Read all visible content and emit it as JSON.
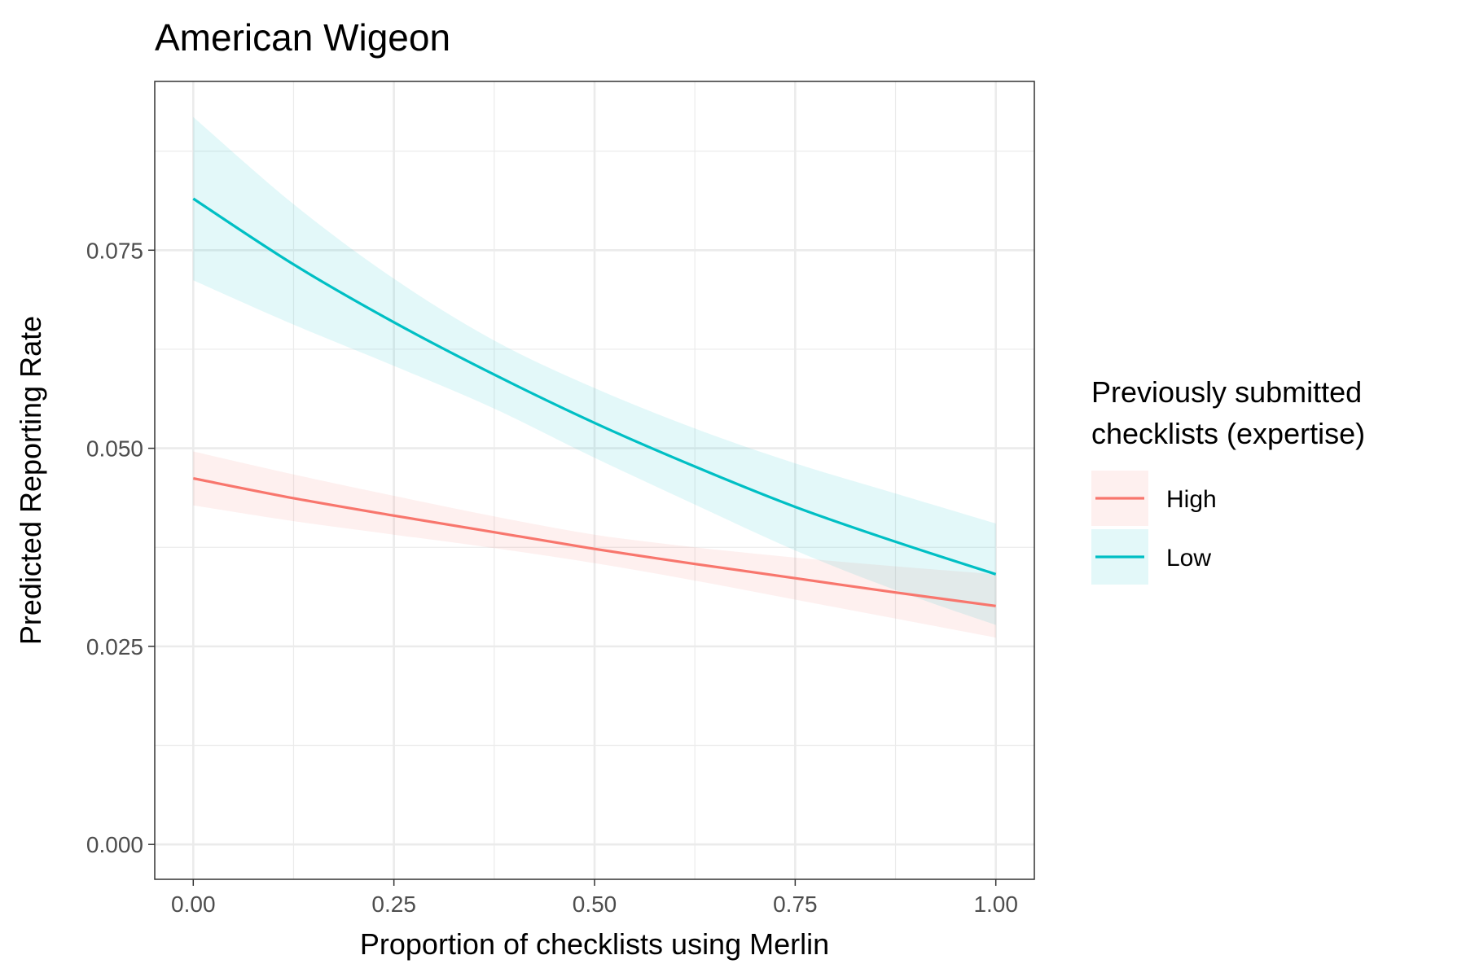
{
  "chart_data": {
    "type": "line",
    "title": "American Wigeon",
    "xlabel": "Proportion of checklists using Merlin",
    "ylabel": "Predicted Reporting Rate",
    "xlim": [
      -0.048,
      1.048
    ],
    "ylim": [
      -0.0044,
      0.0963
    ],
    "x_ticks": [
      0,
      0.25,
      0.5,
      0.75,
      1
    ],
    "x_tick_labels": [
      "0.00",
      "0.25",
      "0.50",
      "0.75",
      "1.00"
    ],
    "y_ticks": [
      0,
      0.025,
      0.05,
      0.075
    ],
    "y_tick_labels": [
      "0.000",
      "0.025",
      "0.050",
      "0.075"
    ],
    "grid": true,
    "legend": {
      "title_lines": [
        "Previously submitted",
        "checklists (expertise)"
      ],
      "placement": "right"
    },
    "series": [
      {
        "name": "High",
        "color": "#F8766D",
        "x": [
          0,
          0.125,
          0.25,
          0.375,
          0.5,
          0.625,
          0.75,
          0.875,
          1
        ],
        "y": [
          0.0462,
          0.0437,
          0.0415,
          0.0394,
          0.0373,
          0.0354,
          0.0336,
          0.0318,
          0.0301
        ],
        "lower": [
          0.0428,
          0.0408,
          0.0391,
          0.0374,
          0.0355,
          0.0333,
          0.0309,
          0.0285,
          0.0261
        ],
        "upper": [
          0.0496,
          0.0467,
          0.044,
          0.0414,
          0.0391,
          0.0375,
          0.0362,
          0.0351,
          0.0341
        ]
      },
      {
        "name": "Low",
        "color": "#00BFC4",
        "x": [
          0,
          0.125,
          0.25,
          0.375,
          0.5,
          0.625,
          0.75,
          0.875,
          1
        ],
        "y": [
          0.0815,
          0.0732,
          0.0659,
          0.0593,
          0.0532,
          0.0477,
          0.0426,
          0.0382,
          0.0341
        ],
        "lower": [
          0.0712,
          0.0656,
          0.0604,
          0.055,
          0.0488,
          0.0429,
          0.0371,
          0.0321,
          0.0277
        ],
        "upper": [
          0.0918,
          0.0808,
          0.0714,
          0.0636,
          0.0576,
          0.0525,
          0.0481,
          0.0443,
          0.0405
        ]
      }
    ]
  }
}
